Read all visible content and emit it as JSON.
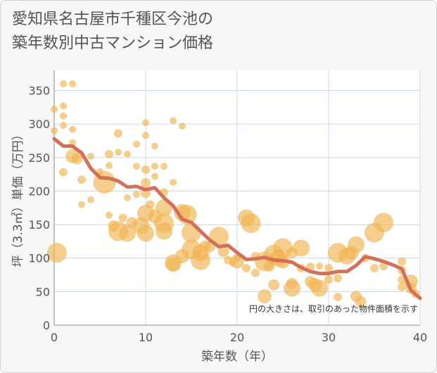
{
  "title_line1": "愛知県名古屋市千種区今池の",
  "title_line2": "築年数別中古マンション価格",
  "note": "円の大きさは、取引のあった物件面積を示す",
  "colors": {
    "bubble": "#f0b350",
    "line": "#d4705a",
    "grid": "#c8d8e8",
    "plot_bg": "#ffffff"
  },
  "chart_data": {
    "type": "scatter",
    "xlabel": "築年数（年）",
    "ylabel": "坪（3.3㎡）単価（万円）",
    "xlim": [
      0,
      40
    ],
    "ylim": [
      0,
      380
    ],
    "xticks": [
      0,
      10,
      20,
      30,
      40
    ],
    "yticks": [
      0,
      50,
      100,
      150,
      200,
      250,
      300,
      350
    ],
    "grid": true,
    "bubbles": [
      {
        "x": 0,
        "y": 322,
        "r": 5
      },
      {
        "x": 0,
        "y": 290,
        "r": 5
      },
      {
        "x": 0.3,
        "y": 108,
        "r": 14
      },
      {
        "x": 1,
        "y": 360,
        "r": 5
      },
      {
        "x": 2,
        "y": 360,
        "r": 5
      },
      {
        "x": 1,
        "y": 327,
        "r": 5
      },
      {
        "x": 1,
        "y": 312,
        "r": 5
      },
      {
        "x": 1,
        "y": 298,
        "r": 5
      },
      {
        "x": 2,
        "y": 292,
        "r": 5
      },
      {
        "x": 2,
        "y": 272,
        "r": 5
      },
      {
        "x": 1,
        "y": 228,
        "r": 6
      },
      {
        "x": 2,
        "y": 252,
        "r": 10
      },
      {
        "x": 2.5,
        "y": 248,
        "r": 8
      },
      {
        "x": 3,
        "y": 217,
        "r": 6
      },
      {
        "x": 3,
        "y": 180,
        "r": 5
      },
      {
        "x": 4,
        "y": 187,
        "r": 5
      },
      {
        "x": 4,
        "y": 252,
        "r": 5
      },
      {
        "x": 5,
        "y": 229,
        "r": 5
      },
      {
        "x": 5.5,
        "y": 213,
        "r": 16
      },
      {
        "x": 6,
        "y": 255,
        "r": 6
      },
      {
        "x": 6,
        "y": 238,
        "r": 5
      },
      {
        "x": 6,
        "y": 164,
        "r": 5
      },
      {
        "x": 6.5,
        "y": 148,
        "r": 8
      },
      {
        "x": 7,
        "y": 286,
        "r": 6
      },
      {
        "x": 7,
        "y": 258,
        "r": 5
      },
      {
        "x": 7,
        "y": 140,
        "r": 14
      },
      {
        "x": 7.5,
        "y": 160,
        "r": 6
      },
      {
        "x": 8,
        "y": 255,
        "r": 5
      },
      {
        "x": 8,
        "y": 190,
        "r": 5
      },
      {
        "x": 8,
        "y": 137,
        "r": 12
      },
      {
        "x": 8.5,
        "y": 153,
        "r": 8
      },
      {
        "x": 9,
        "y": 270,
        "r": 5
      },
      {
        "x": 9,
        "y": 237,
        "r": 5
      },
      {
        "x": 9,
        "y": 195,
        "r": 5
      },
      {
        "x": 9.5,
        "y": 148,
        "r": 12
      },
      {
        "x": 10,
        "y": 302,
        "r": 5
      },
      {
        "x": 10,
        "y": 283,
        "r": 5
      },
      {
        "x": 10,
        "y": 232,
        "r": 6
      },
      {
        "x": 10,
        "y": 212,
        "r": 7
      },
      {
        "x": 10,
        "y": 197,
        "r": 7
      },
      {
        "x": 10,
        "y": 167,
        "r": 12
      },
      {
        "x": 10,
        "y": 137,
        "r": 12
      },
      {
        "x": 10.5,
        "y": 180,
        "r": 6
      },
      {
        "x": 11,
        "y": 267,
        "r": 5
      },
      {
        "x": 11,
        "y": 237,
        "r": 5
      },
      {
        "x": 11,
        "y": 222,
        "r": 5
      },
      {
        "x": 11,
        "y": 162,
        "r": 10
      },
      {
        "x": 12,
        "y": 237,
        "r": 5
      },
      {
        "x": 12,
        "y": 198,
        "r": 6
      },
      {
        "x": 12,
        "y": 175,
        "r": 12
      },
      {
        "x": 12,
        "y": 152,
        "r": 14
      },
      {
        "x": 12,
        "y": 140,
        "r": 12
      },
      {
        "x": 13,
        "y": 305,
        "r": 5
      },
      {
        "x": 13,
        "y": 213,
        "r": 5
      },
      {
        "x": 13,
        "y": 93,
        "r": 12
      },
      {
        "x": 13,
        "y": 90,
        "r": 10
      },
      {
        "x": 14,
        "y": 297,
        "r": 5
      },
      {
        "x": 14,
        "y": 168,
        "r": 12
      },
      {
        "x": 14.5,
        "y": 165,
        "r": 14
      },
      {
        "x": 14,
        "y": 103,
        "r": 10
      },
      {
        "x": 15,
        "y": 138,
        "r": 14
      },
      {
        "x": 15,
        "y": 113,
        "r": 14
      },
      {
        "x": 16,
        "y": 108,
        "r": 12
      },
      {
        "x": 16,
        "y": 97,
        "r": 14
      },
      {
        "x": 16.5,
        "y": 118,
        "r": 8
      },
      {
        "x": 17,
        "y": 117,
        "r": 8
      },
      {
        "x": 18,
        "y": 132,
        "r": 14
      },
      {
        "x": 18.5,
        "y": 110,
        "r": 8
      },
      {
        "x": 19,
        "y": 97,
        "r": 6
      },
      {
        "x": 19.5,
        "y": 93,
        "r": 5
      },
      {
        "x": 20,
        "y": 100,
        "r": 5
      },
      {
        "x": 20,
        "y": 95,
        "r": 10
      },
      {
        "x": 21,
        "y": 160,
        "r": 12
      },
      {
        "x": 21,
        "y": 85,
        "r": 6
      },
      {
        "x": 21.5,
        "y": 152,
        "r": 14
      },
      {
        "x": 22,
        "y": 103,
        "r": 6
      },
      {
        "x": 22,
        "y": 78,
        "r": 6
      },
      {
        "x": 23,
        "y": 95,
        "r": 14
      },
      {
        "x": 23,
        "y": 43,
        "r": 10
      },
      {
        "x": 23.5,
        "y": 88,
        "r": 8
      },
      {
        "x": 24,
        "y": 105,
        "r": 14
      },
      {
        "x": 24,
        "y": 60,
        "r": 8
      },
      {
        "x": 24.5,
        "y": 100,
        "r": 12
      },
      {
        "x": 25,
        "y": 115,
        "r": 14
      },
      {
        "x": 25,
        "y": 95,
        "r": 10
      },
      {
        "x": 26,
        "y": 108,
        "r": 8
      },
      {
        "x": 26,
        "y": 55,
        "r": 12
      },
      {
        "x": 26,
        "y": 62,
        "r": 8
      },
      {
        "x": 27,
        "y": 115,
        "r": 12
      },
      {
        "x": 27,
        "y": 85,
        "r": 6
      },
      {
        "x": 28,
        "y": 87,
        "r": 6
      },
      {
        "x": 28,
        "y": 65,
        "r": 8
      },
      {
        "x": 28.5,
        "y": 60,
        "r": 10
      },
      {
        "x": 29,
        "y": 88,
        "r": 5
      },
      {
        "x": 29,
        "y": 55,
        "r": 12
      },
      {
        "x": 30,
        "y": 85,
        "r": 6
      },
      {
        "x": 30,
        "y": 68,
        "r": 6
      },
      {
        "x": 31,
        "y": 108,
        "r": 14
      },
      {
        "x": 31,
        "y": 70,
        "r": 6
      },
      {
        "x": 31,
        "y": 42,
        "r": 6
      },
      {
        "x": 32,
        "y": 103,
        "r": 12
      },
      {
        "x": 32.5,
        "y": 108,
        "r": 10
      },
      {
        "x": 33,
        "y": 120,
        "r": 12
      },
      {
        "x": 33,
        "y": 43,
        "r": 8
      },
      {
        "x": 33.5,
        "y": 35,
        "r": 8
      },
      {
        "x": 34,
        "y": 100,
        "r": 6
      },
      {
        "x": 35,
        "y": 138,
        "r": 14
      },
      {
        "x": 35,
        "y": 85,
        "r": 6
      },
      {
        "x": 36,
        "y": 153,
        "r": 14
      },
      {
        "x": 36,
        "y": 88,
        "r": 6
      },
      {
        "x": 38,
        "y": 95,
        "r": 6
      },
      {
        "x": 38,
        "y": 82,
        "r": 6
      },
      {
        "x": 38,
        "y": 68,
        "r": 6
      },
      {
        "x": 38,
        "y": 57,
        "r": 6
      },
      {
        "x": 39,
        "y": 65,
        "r": 10
      },
      {
        "x": 39,
        "y": 55,
        "r": 8
      },
      {
        "x": 39.5,
        "y": 47,
        "r": 6
      }
    ],
    "series": [
      {
        "x": [
          0,
          1,
          2,
          3,
          4,
          5,
          6,
          7,
          8,
          9,
          10,
          11,
          12,
          13,
          14,
          15,
          16,
          17,
          18,
          19,
          20,
          21,
          22,
          23,
          24,
          25,
          26,
          27,
          28,
          29,
          30,
          31,
          32,
          33,
          34,
          35,
          36,
          37,
          38,
          39,
          40
        ],
        "y": [
          278,
          267,
          267,
          257,
          234,
          220,
          219,
          215,
          206,
          207,
          202,
          205,
          190,
          178,
          158,
          153,
          140,
          127,
          117,
          119,
          108,
          98,
          99,
          101,
          97,
          96,
          94,
          86,
          80,
          77,
          77,
          80,
          80,
          89,
          102,
          99,
          95,
          90,
          84,
          52,
          40
        ]
      }
    ]
  }
}
